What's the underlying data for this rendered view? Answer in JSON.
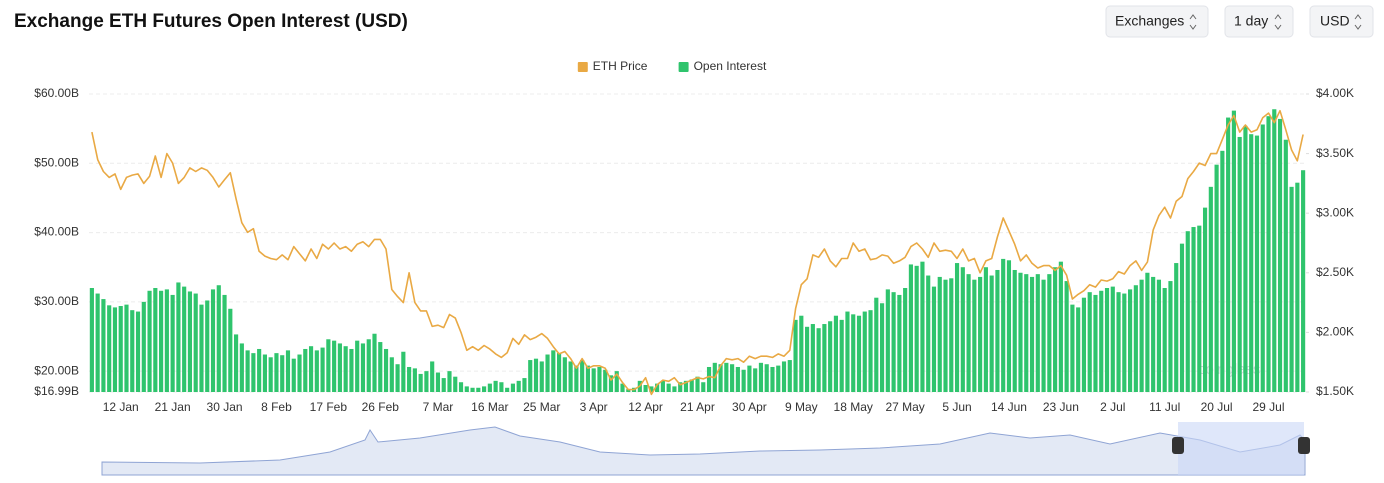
{
  "controls": [
    "Exchanges",
    "1 day",
    "USD"
  ],
  "chart_data": {
    "type": "bar",
    "title": "Exchange ETH Futures Open Interest (USD)",
    "watermark": "coinglass",
    "legend": "top",
    "grid": true,
    "categories": [
      null,
      null,
      null,
      null,
      null,
      "12 Jan",
      null,
      null,
      null,
      null,
      null,
      null,
      null,
      null,
      "21 Jan",
      null,
      null,
      null,
      null,
      null,
      null,
      null,
      null,
      "30 Jan",
      null,
      null,
      null,
      null,
      null,
      null,
      null,
      null,
      "8 Feb",
      null,
      null,
      null,
      null,
      null,
      null,
      null,
      null,
      "17 Feb",
      null,
      null,
      null,
      null,
      null,
      null,
      null,
      null,
      "26 Feb",
      null,
      null,
      null,
      null,
      null,
      null,
      null,
      null,
      null,
      "7 Mar",
      null,
      null,
      null,
      null,
      null,
      null,
      null,
      null,
      "16 Mar",
      null,
      null,
      null,
      null,
      null,
      null,
      null,
      null,
      "25 Mar",
      null,
      null,
      null,
      null,
      null,
      null,
      null,
      null,
      "3 Apr",
      null,
      null,
      null,
      null,
      null,
      null,
      null,
      null,
      "12 Apr",
      null,
      null,
      null,
      null,
      null,
      null,
      null,
      null,
      "21 Apr",
      null,
      null,
      null,
      null,
      null,
      null,
      null,
      null,
      "30 Apr",
      null,
      null,
      null,
      null,
      null,
      null,
      null,
      null,
      "9 May",
      null,
      null,
      null,
      null,
      null,
      null,
      null,
      null,
      "18 May",
      null,
      null,
      null,
      null,
      null,
      null,
      null,
      null,
      "27 May",
      null,
      null,
      null,
      null,
      null,
      null,
      null,
      null,
      "5 Jun",
      null,
      null,
      null,
      null,
      null,
      null,
      null,
      null,
      "14 Jun",
      null,
      null,
      null,
      null,
      null,
      null,
      null,
      null,
      "23 Jun",
      null,
      null,
      null,
      null,
      null,
      null,
      null,
      null,
      "2 Jul",
      null,
      null,
      null,
      null,
      null,
      null,
      null,
      null,
      "11 Jul",
      null,
      null,
      null,
      null,
      null,
      null,
      null,
      null,
      "20 Jul",
      null,
      null,
      null,
      null,
      null,
      null,
      null,
      null,
      "29 Jul",
      null,
      null,
      null,
      null,
      null,
      null
    ],
    "ylim": [
      16.99,
      60
    ],
    "yticks": [
      {
        "value": 16.99,
        "label": "$16.99B"
      },
      {
        "value": 20,
        "label": "$20.00B"
      },
      {
        "value": 30,
        "label": "$30.00B"
      },
      {
        "value": 40,
        "label": "$40.00B"
      },
      {
        "value": 50,
        "label": "$50.00B"
      },
      {
        "value": 60,
        "label": "$60.00B"
      }
    ],
    "y2lim": [
      1500,
      4000
    ],
    "y2ticks": [
      {
        "value": 1500,
        "label": "$1.50K"
      },
      {
        "value": 2000,
        "label": "$2.00K"
      },
      {
        "value": 2500,
        "label": "$2.50K"
      },
      {
        "value": 3000,
        "label": "$3.00K"
      },
      {
        "value": 3500,
        "label": "$3.50K"
      },
      {
        "value": 4000,
        "label": "$4.00K"
      }
    ],
    "series": [
      {
        "name": "ETH Price",
        "type": "line",
        "axis": "y2",
        "color": "#e9a944",
        "values": [
          3680,
          3450,
          3350,
          3300,
          3330,
          3200,
          3300,
          3320,
          3330,
          3250,
          3310,
          3480,
          3300,
          3500,
          3420,
          3250,
          3300,
          3380,
          3350,
          3380,
          3360,
          3300,
          3220,
          3280,
          3340,
          3120,
          2920,
          2840,
          2870,
          2680,
          2640,
          2620,
          2610,
          2650,
          2610,
          2720,
          2660,
          2600,
          2700,
          2620,
          2740,
          2700,
          2750,
          2700,
          2720,
          2680,
          2740,
          2760,
          2720,
          2780,
          2780,
          2700,
          2360,
          2300,
          2250,
          2500,
          2250,
          2180,
          2180,
          2050,
          2060,
          2040,
          2150,
          2120,
          2000,
          1850,
          1880,
          1850,
          1890,
          1860,
          1820,
          1790,
          1830,
          1950,
          1900,
          1980,
          1940,
          1960,
          1990,
          1950,
          1880,
          1820,
          1840,
          1780,
          1700,
          1780,
          1700,
          1720,
          1720,
          1700,
          1600,
          1650,
          1580,
          1520,
          1520,
          1550,
          1620,
          1480,
          1560,
          1600,
          1590,
          1620,
          1560,
          1580,
          1600,
          1620,
          1610,
          1630,
          1620,
          1720,
          1780,
          1770,
          1780,
          1750,
          1800,
          1780,
          1800,
          1800,
          1790,
          1820,
          1800,
          1850,
          2200,
          2400,
          2450,
          2650,
          2630,
          2700,
          2600,
          2550,
          2620,
          2620,
          2750,
          2680,
          2700,
          2610,
          2620,
          2650,
          2640,
          2580,
          2600,
          2630,
          2720,
          2750,
          2700,
          2630,
          2750,
          2680,
          2690,
          2680,
          2620,
          2700,
          2600,
          2620,
          2500,
          2600,
          2620,
          2800,
          2960,
          2850,
          2740,
          2600,
          2650,
          2580,
          2540,
          2560,
          2560,
          2520,
          2560,
          2480,
          2280,
          2320,
          2350,
          2400,
          2380,
          2440,
          2430,
          2450,
          2510,
          2490,
          2560,
          2600,
          2520,
          2590,
          2860,
          2980,
          3050,
          2960,
          3100,
          3140,
          3290,
          3350,
          3420,
          3400,
          3500,
          3500,
          3620,
          3740,
          3820,
          3680,
          3740,
          3680,
          3700,
          3800,
          3840,
          3760,
          3860,
          3700,
          3530,
          3440,
          3660
        ]
      },
      {
        "name": "Open Interest",
        "type": "bar",
        "axis": "y",
        "color": "#2fc46d",
        "values": [
          32.0,
          31.2,
          30.4,
          29.5,
          29.2,
          29.4,
          29.6,
          28.8,
          28.6,
          30.0,
          31.6,
          32.0,
          31.6,
          31.8,
          31.0,
          32.8,
          32.2,
          31.5,
          31.2,
          29.6,
          30.2,
          31.8,
          32.4,
          31.0,
          29.0,
          25.3,
          24.0,
          23.0,
          22.6,
          23.2,
          22.4,
          22.0,
          22.6,
          22.3,
          23.0,
          21.8,
          22.4,
          23.2,
          23.6,
          23.0,
          23.4,
          24.6,
          24.4,
          24.0,
          23.6,
          23.2,
          24.4,
          24.0,
          24.6,
          25.4,
          24.2,
          23.2,
          22.0,
          21.0,
          22.8,
          20.6,
          20.4,
          19.6,
          20.0,
          21.4,
          19.8,
          19.0,
          20.0,
          19.2,
          18.4,
          17.8,
          17.6,
          17.6,
          17.8,
          18.2,
          18.6,
          18.4,
          17.6,
          18.2,
          18.6,
          19.0,
          21.6,
          21.8,
          21.4,
          22.4,
          23.0,
          22.6,
          22.0,
          21.4,
          20.8,
          21.6,
          20.8,
          20.4,
          20.6,
          20.2,
          19.4,
          20.0,
          18.2,
          17.4,
          17.6,
          18.6,
          18.0,
          17.8,
          18.2,
          18.6,
          18.2,
          17.8,
          18.4,
          18.6,
          18.8,
          19.2,
          18.4,
          20.6,
          21.2,
          21.0,
          21.2,
          21.0,
          20.6,
          20.2,
          20.8,
          20.4,
          21.2,
          21.0,
          20.6,
          20.8,
          21.4,
          21.6,
          27.4,
          28.0,
          26.4,
          26.8,
          26.2,
          26.8,
          27.2,
          28.0,
          27.4,
          28.6,
          28.2,
          28.0,
          28.6,
          28.8,
          30.6,
          29.8,
          31.8,
          31.4,
          31.0,
          32.0,
          35.4,
          35.2,
          35.8,
          33.8,
          32.2,
          33.6,
          33.2,
          33.4,
          35.6,
          35.0,
          34.0,
          33.2,
          33.6,
          35.0,
          33.8,
          34.6,
          36.2,
          36.0,
          34.6,
          34.2,
          34.0,
          33.6,
          34.0,
          33.2,
          34.0,
          35.0,
          35.8,
          33.0,
          29.6,
          29.2,
          30.6,
          31.4,
          31.0,
          31.6,
          32.0,
          32.2,
          31.4,
          31.2,
          31.8,
          32.4,
          33.2,
          34.2,
          33.6,
          33.2,
          32.0,
          33.0,
          35.6,
          38.4,
          40.2,
          40.8,
          41.0,
          43.6,
          46.6,
          49.8,
          51.8,
          56.6,
          57.6,
          53.8,
          55.4,
          54.2,
          54.0,
          55.6,
          56.8,
          57.8,
          56.4,
          53.4,
          46.6,
          47.2,
          49.0
        ]
      }
    ]
  }
}
